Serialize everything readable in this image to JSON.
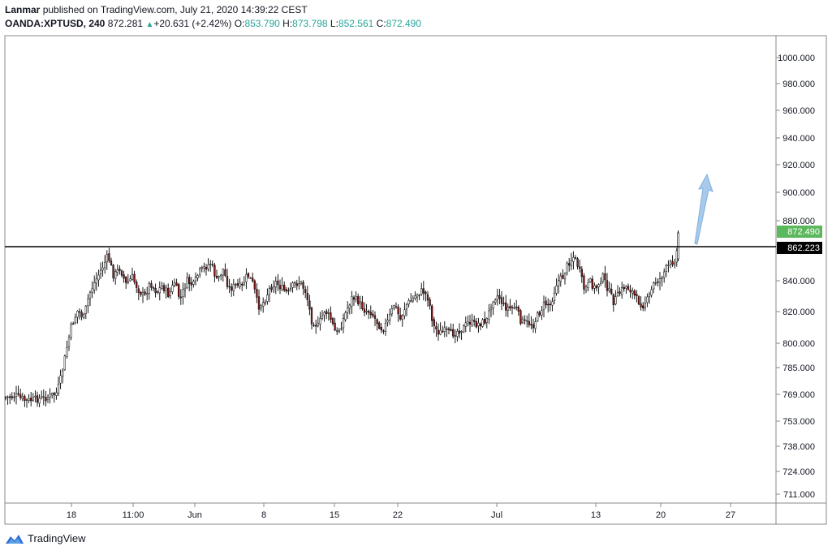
{
  "header": {
    "author": "Lanmar",
    "published_text": " published on TradingView.com, July 21, 2020 14:39:22 CEST",
    "symbol": "OANDA:XPTUSD, 240",
    "last": "872.281",
    "change_icon": "triangle-up-icon",
    "change": "+20.631 (+2.42%)",
    "o_label": "O:",
    "o_value": "853.790",
    "h_label": "H:",
    "h_value": "873.798",
    "l_label": "L:",
    "l_value": "852.561",
    "c_label": "C:",
    "c_value": "872.490"
  },
  "footer": {
    "brand": "TradingView",
    "logo_icon": "tradingview-logo-icon"
  },
  "colors": {
    "up": "#26a69a",
    "price_tag": "#5cb85c",
    "level_tag": "#000000",
    "arrow": "#a9c9ea",
    "down_body": "#8b1a1a"
  },
  "chart_data": {
    "type": "candlestick",
    "y_ticks": [
      "1000.000",
      "980.000",
      "960.000",
      "940.000",
      "920.000",
      "900.000",
      "880.000",
      "840.000",
      "820.000",
      "800.000",
      "785.000",
      "769.000",
      "753.000",
      "738.000",
      "724.000",
      "711.000"
    ],
    "x_ticks": [
      "18",
      "11:00",
      "Jun",
      "8",
      "15",
      "22",
      "Jul",
      "13",
      "20",
      "27"
    ],
    "current_price_label": "872.490",
    "horizontal_level_label": "862.223",
    "horizontal_level": 862.223,
    "close_path": [
      {
        "x": 7,
        "y": 490
      },
      {
        "x": 20,
        "y": 488
      },
      {
        "x": 32,
        "y": 494
      },
      {
        "x": 45,
        "y": 492
      },
      {
        "x": 58,
        "y": 490
      },
      {
        "x": 70,
        "y": 484
      },
      {
        "x": 76,
        "y": 462
      },
      {
        "x": 82,
        "y": 430
      },
      {
        "x": 88,
        "y": 402
      },
      {
        "x": 96,
        "y": 382
      },
      {
        "x": 103,
        "y": 392
      },
      {
        "x": 110,
        "y": 362
      },
      {
        "x": 118,
        "y": 345
      },
      {
        "x": 126,
        "y": 330
      },
      {
        "x": 133,
        "y": 315
      },
      {
        "x": 140,
        "y": 340
      },
      {
        "x": 148,
        "y": 330
      },
      {
        "x": 155,
        "y": 350
      },
      {
        "x": 163,
        "y": 342
      },
      {
        "x": 170,
        "y": 356
      },
      {
        "x": 178,
        "y": 366
      },
      {
        "x": 185,
        "y": 348
      },
      {
        "x": 193,
        "y": 360
      },
      {
        "x": 200,
        "y": 352
      },
      {
        "x": 208,
        "y": 364
      },
      {
        "x": 215,
        "y": 348
      },
      {
        "x": 222,
        "y": 370
      },
      {
        "x": 230,
        "y": 346
      },
      {
        "x": 238,
        "y": 352
      },
      {
        "x": 245,
        "y": 336
      },
      {
        "x": 252,
        "y": 330
      },
      {
        "x": 260,
        "y": 324
      },
      {
        "x": 267,
        "y": 346
      },
      {
        "x": 275,
        "y": 332
      },
      {
        "x": 282,
        "y": 356
      },
      {
        "x": 290,
        "y": 352
      },
      {
        "x": 298,
        "y": 354
      },
      {
        "x": 305,
        "y": 338
      },
      {
        "x": 312,
        "y": 350
      },
      {
        "x": 318,
        "y": 378
      },
      {
        "x": 325,
        "y": 372
      },
      {
        "x": 333,
        "y": 354
      },
      {
        "x": 340,
        "y": 348
      },
      {
        "x": 348,
        "y": 356
      },
      {
        "x": 355,
        "y": 362
      },
      {
        "x": 362,
        "y": 350
      },
      {
        "x": 370,
        "y": 348
      },
      {
        "x": 377,
        "y": 360
      },
      {
        "x": 384,
        "y": 395
      },
      {
        "x": 392,
        "y": 402
      },
      {
        "x": 400,
        "y": 382
      },
      {
        "x": 407,
        "y": 392
      },
      {
        "x": 414,
        "y": 412
      },
      {
        "x": 420,
        "y": 402
      },
      {
        "x": 427,
        "y": 382
      },
      {
        "x": 434,
        "y": 366
      },
      {
        "x": 442,
        "y": 372
      },
      {
        "x": 449,
        "y": 382
      },
      {
        "x": 457,
        "y": 384
      },
      {
        "x": 464,
        "y": 396
      },
      {
        "x": 471,
        "y": 406
      },
      {
        "x": 478,
        "y": 396
      },
      {
        "x": 486,
        "y": 374
      },
      {
        "x": 493,
        "y": 394
      },
      {
        "x": 500,
        "y": 376
      },
      {
        "x": 507,
        "y": 370
      },
      {
        "x": 514,
        "y": 362
      },
      {
        "x": 521,
        "y": 358
      },
      {
        "x": 528,
        "y": 368
      },
      {
        "x": 534,
        "y": 402
      },
      {
        "x": 541,
        "y": 410
      },
      {
        "x": 549,
        "y": 408
      },
      {
        "x": 556,
        "y": 412
      },
      {
        "x": 563,
        "y": 408
      },
      {
        "x": 571,
        "y": 404
      },
      {
        "x": 578,
        "y": 396
      },
      {
        "x": 585,
        "y": 400
      },
      {
        "x": 593,
        "y": 398
      },
      {
        "x": 600,
        "y": 394
      },
      {
        "x": 607,
        "y": 368
      },
      {
        "x": 614,
        "y": 364
      },
      {
        "x": 621,
        "y": 378
      },
      {
        "x": 628,
        "y": 380
      },
      {
        "x": 635,
        "y": 378
      },
      {
        "x": 642,
        "y": 396
      },
      {
        "x": 650,
        "y": 398
      },
      {
        "x": 657,
        "y": 400
      },
      {
        "x": 664,
        "y": 386
      },
      {
        "x": 671,
        "y": 374
      },
      {
        "x": 678,
        "y": 376
      },
      {
        "x": 686,
        "y": 348
      },
      {
        "x": 693,
        "y": 342
      },
      {
        "x": 700,
        "y": 324
      },
      {
        "x": 707,
        "y": 316
      },
      {
        "x": 713,
        "y": 330
      },
      {
        "x": 720,
        "y": 358
      },
      {
        "x": 727,
        "y": 348
      },
      {
        "x": 734,
        "y": 356
      },
      {
        "x": 742,
        "y": 340
      },
      {
        "x": 749,
        "y": 356
      },
      {
        "x": 756,
        "y": 372
      },
      {
        "x": 763,
        "y": 362
      },
      {
        "x": 770,
        "y": 352
      },
      {
        "x": 778,
        "y": 358
      },
      {
        "x": 785,
        "y": 370
      },
      {
        "x": 792,
        "y": 376
      },
      {
        "x": 799,
        "y": 368
      },
      {
        "x": 806,
        "y": 348
      },
      {
        "x": 813,
        "y": 344
      },
      {
        "x": 820,
        "y": 332
      },
      {
        "x": 827,
        "y": 324
      },
      {
        "x": 833,
        "y": 318
      },
      {
        "x": 836,
        "y": 287
      }
    ]
  }
}
